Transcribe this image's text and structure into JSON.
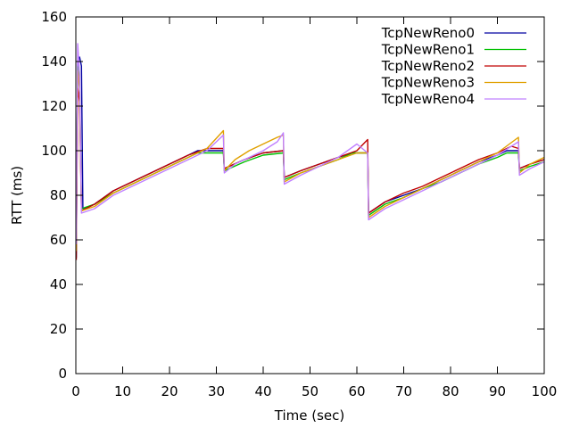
{
  "chart_data": {
    "type": "line",
    "xlabel": "Time (sec)",
    "ylabel": "RTT (ms)",
    "xlim": [
      0,
      100
    ],
    "ylim": [
      0,
      160
    ],
    "xticks": [
      0,
      10,
      20,
      30,
      40,
      50,
      60,
      70,
      80,
      90,
      100
    ],
    "yticks": [
      0,
      20,
      40,
      60,
      80,
      100,
      120,
      140,
      160
    ],
    "grid": false,
    "legend_position": "top-right",
    "series": [
      {
        "name": "TcpNewReno0",
        "color": "#0000a0",
        "points": [
          [
            0.1,
            52
          ],
          [
            0.4,
            140
          ],
          [
            0.8,
            142
          ],
          [
            1.2,
            138
          ],
          [
            1.5,
            74
          ],
          [
            4,
            76
          ],
          [
            8,
            82
          ],
          [
            12,
            86
          ],
          [
            16,
            90
          ],
          [
            20,
            94
          ],
          [
            24,
            98
          ],
          [
            26,
            100
          ],
          [
            31.5,
            100
          ],
          [
            31.7,
            92
          ],
          [
            36,
            96
          ],
          [
            40,
            99
          ],
          [
            44.3,
            100
          ],
          [
            44.5,
            88
          ],
          [
            48,
            91
          ],
          [
            52,
            94
          ],
          [
            56,
            97
          ],
          [
            59,
            99
          ],
          [
            62.3,
            99
          ],
          [
            62.5,
            72
          ],
          [
            66,
            77
          ],
          [
            70,
            80
          ],
          [
            74,
            83
          ],
          [
            78,
            87
          ],
          [
            82,
            91
          ],
          [
            86,
            95
          ],
          [
            90,
            98
          ],
          [
            92,
            100
          ],
          [
            94.5,
            100
          ],
          [
            94.7,
            92
          ],
          [
            97,
            94
          ],
          [
            100,
            96
          ]
        ]
      },
      {
        "name": "TcpNewReno1",
        "color": "#00c000",
        "points": [
          [
            0.1,
            60
          ],
          [
            0.4,
            138
          ],
          [
            0.8,
            130
          ],
          [
            1.2,
            74
          ],
          [
            4,
            76
          ],
          [
            8,
            81
          ],
          [
            12,
            85
          ],
          [
            16,
            89
          ],
          [
            20,
            93
          ],
          [
            24,
            97
          ],
          [
            26,
            99
          ],
          [
            31.5,
            99
          ],
          [
            31.7,
            91
          ],
          [
            36,
            95
          ],
          [
            40,
            98
          ],
          [
            44.3,
            99
          ],
          [
            44.5,
            87
          ],
          [
            48,
            90
          ],
          [
            52,
            93
          ],
          [
            56,
            96
          ],
          [
            59,
            99
          ],
          [
            62.3,
            99
          ],
          [
            62.5,
            71
          ],
          [
            66,
            76
          ],
          [
            70,
            79
          ],
          [
            74,
            83
          ],
          [
            78,
            86
          ],
          [
            82,
            90
          ],
          [
            86,
            94
          ],
          [
            90,
            97
          ],
          [
            92,
            99
          ],
          [
            94.5,
            99
          ],
          [
            94.7,
            91
          ],
          [
            97,
            93
          ],
          [
            100,
            95
          ]
        ]
      },
      {
        "name": "TcpNewReno2",
        "color": "#c00000",
        "points": [
          [
            0.1,
            51
          ],
          [
            0.4,
            128
          ],
          [
            0.8,
            122
          ],
          [
            1.2,
            73
          ],
          [
            4,
            76
          ],
          [
            8,
            82
          ],
          [
            12,
            86
          ],
          [
            16,
            90
          ],
          [
            20,
            94
          ],
          [
            24,
            98
          ],
          [
            28,
            101
          ],
          [
            31.5,
            101
          ],
          [
            31.7,
            92
          ],
          [
            36,
            96
          ],
          [
            40,
            99
          ],
          [
            44.3,
            100
          ],
          [
            44.5,
            88
          ],
          [
            48,
            91
          ],
          [
            52,
            94
          ],
          [
            56,
            97
          ],
          [
            60,
            100
          ],
          [
            62.3,
            105
          ],
          [
            62.5,
            72
          ],
          [
            66,
            77
          ],
          [
            70,
            81
          ],
          [
            74,
            84
          ],
          [
            78,
            88
          ],
          [
            82,
            92
          ],
          [
            86,
            96
          ],
          [
            90,
            99
          ],
          [
            93,
            102
          ],
          [
            94.5,
            101
          ],
          [
            94.7,
            92
          ],
          [
            97,
            94
          ],
          [
            100,
            96
          ]
        ]
      },
      {
        "name": "TcpNewReno3",
        "color": "#e0a000",
        "points": [
          [
            0.1,
            55
          ],
          [
            0.4,
            136
          ],
          [
            0.8,
            128
          ],
          [
            1.2,
            73
          ],
          [
            4,
            75
          ],
          [
            8,
            81
          ],
          [
            12,
            85
          ],
          [
            16,
            89
          ],
          [
            20,
            93
          ],
          [
            24,
            97
          ],
          [
            28,
            101
          ],
          [
            31.5,
            109
          ],
          [
            31.7,
            91
          ],
          [
            34,
            96
          ],
          [
            37,
            100
          ],
          [
            40,
            103
          ],
          [
            43,
            106
          ],
          [
            44.3,
            107
          ],
          [
            44.5,
            86
          ],
          [
            48,
            90
          ],
          [
            52,
            93
          ],
          [
            56,
            96
          ],
          [
            60,
            99
          ],
          [
            62.3,
            99
          ],
          [
            62.5,
            70
          ],
          [
            66,
            75
          ],
          [
            70,
            79
          ],
          [
            74,
            83
          ],
          [
            78,
            87
          ],
          [
            82,
            91
          ],
          [
            86,
            95
          ],
          [
            90,
            99
          ],
          [
            94.5,
            106
          ],
          [
            94.7,
            90
          ],
          [
            97,
            94
          ],
          [
            100,
            97
          ]
        ]
      },
      {
        "name": "TcpNewReno4",
        "color": "#c080ff",
        "points": [
          [
            0.1,
            58
          ],
          [
            0.4,
            148
          ],
          [
            0.8,
            134
          ],
          [
            1.2,
            72
          ],
          [
            4,
            74
          ],
          [
            8,
            80
          ],
          [
            12,
            84
          ],
          [
            16,
            88
          ],
          [
            20,
            92
          ],
          [
            24,
            96
          ],
          [
            28,
            100
          ],
          [
            31.5,
            107
          ],
          [
            31.7,
            90
          ],
          [
            34,
            94
          ],
          [
            37,
            97
          ],
          [
            40,
            100
          ],
          [
            43,
            104
          ],
          [
            44.3,
            108
          ],
          [
            44.5,
            85
          ],
          [
            48,
            89
          ],
          [
            52,
            93
          ],
          [
            56,
            97
          ],
          [
            60,
            103
          ],
          [
            62.3,
            99
          ],
          [
            62.5,
            69
          ],
          [
            66,
            74
          ],
          [
            70,
            78
          ],
          [
            74,
            82
          ],
          [
            78,
            86
          ],
          [
            82,
            90
          ],
          [
            86,
            94
          ],
          [
            90,
            98
          ],
          [
            94.5,
            104
          ],
          [
            94.7,
            89
          ],
          [
            97,
            92
          ],
          [
            100,
            95
          ]
        ]
      }
    ]
  }
}
